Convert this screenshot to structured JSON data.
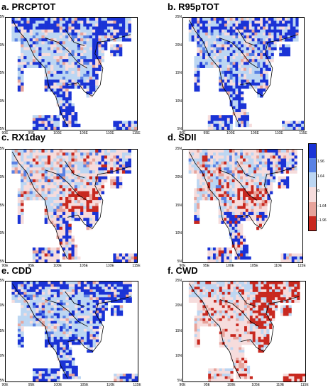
{
  "panels": [
    {
      "title": "a. PRCPTOT",
      "pattern": "wet"
    },
    {
      "title": "b. R95pTOT",
      "pattern": "wet"
    },
    {
      "title": "c. RX1day",
      "pattern": "mixed"
    },
    {
      "title": "d. SDII",
      "pattern": "mixed"
    },
    {
      "title": "e. CDD",
      "pattern": "wet"
    },
    {
      "title": "f. CWD",
      "pattern": "dry"
    }
  ],
  "axis": {
    "y_ticks": [
      "25N",
      "20N",
      "15N",
      "10N",
      "5N"
    ],
    "x_ticks": [
      "90E",
      "95E",
      "100E",
      "105E",
      "110E",
      "115E"
    ]
  },
  "colorbar": {
    "labels": [
      "1.96",
      "1.64",
      "0",
      "−1.64",
      "−1.96"
    ],
    "colors": [
      "#1a33d6",
      "#5a82e4",
      "#bcd6f2",
      "#f6dcdc",
      "#e7a39b",
      "#c8281f"
    ]
  }
}
